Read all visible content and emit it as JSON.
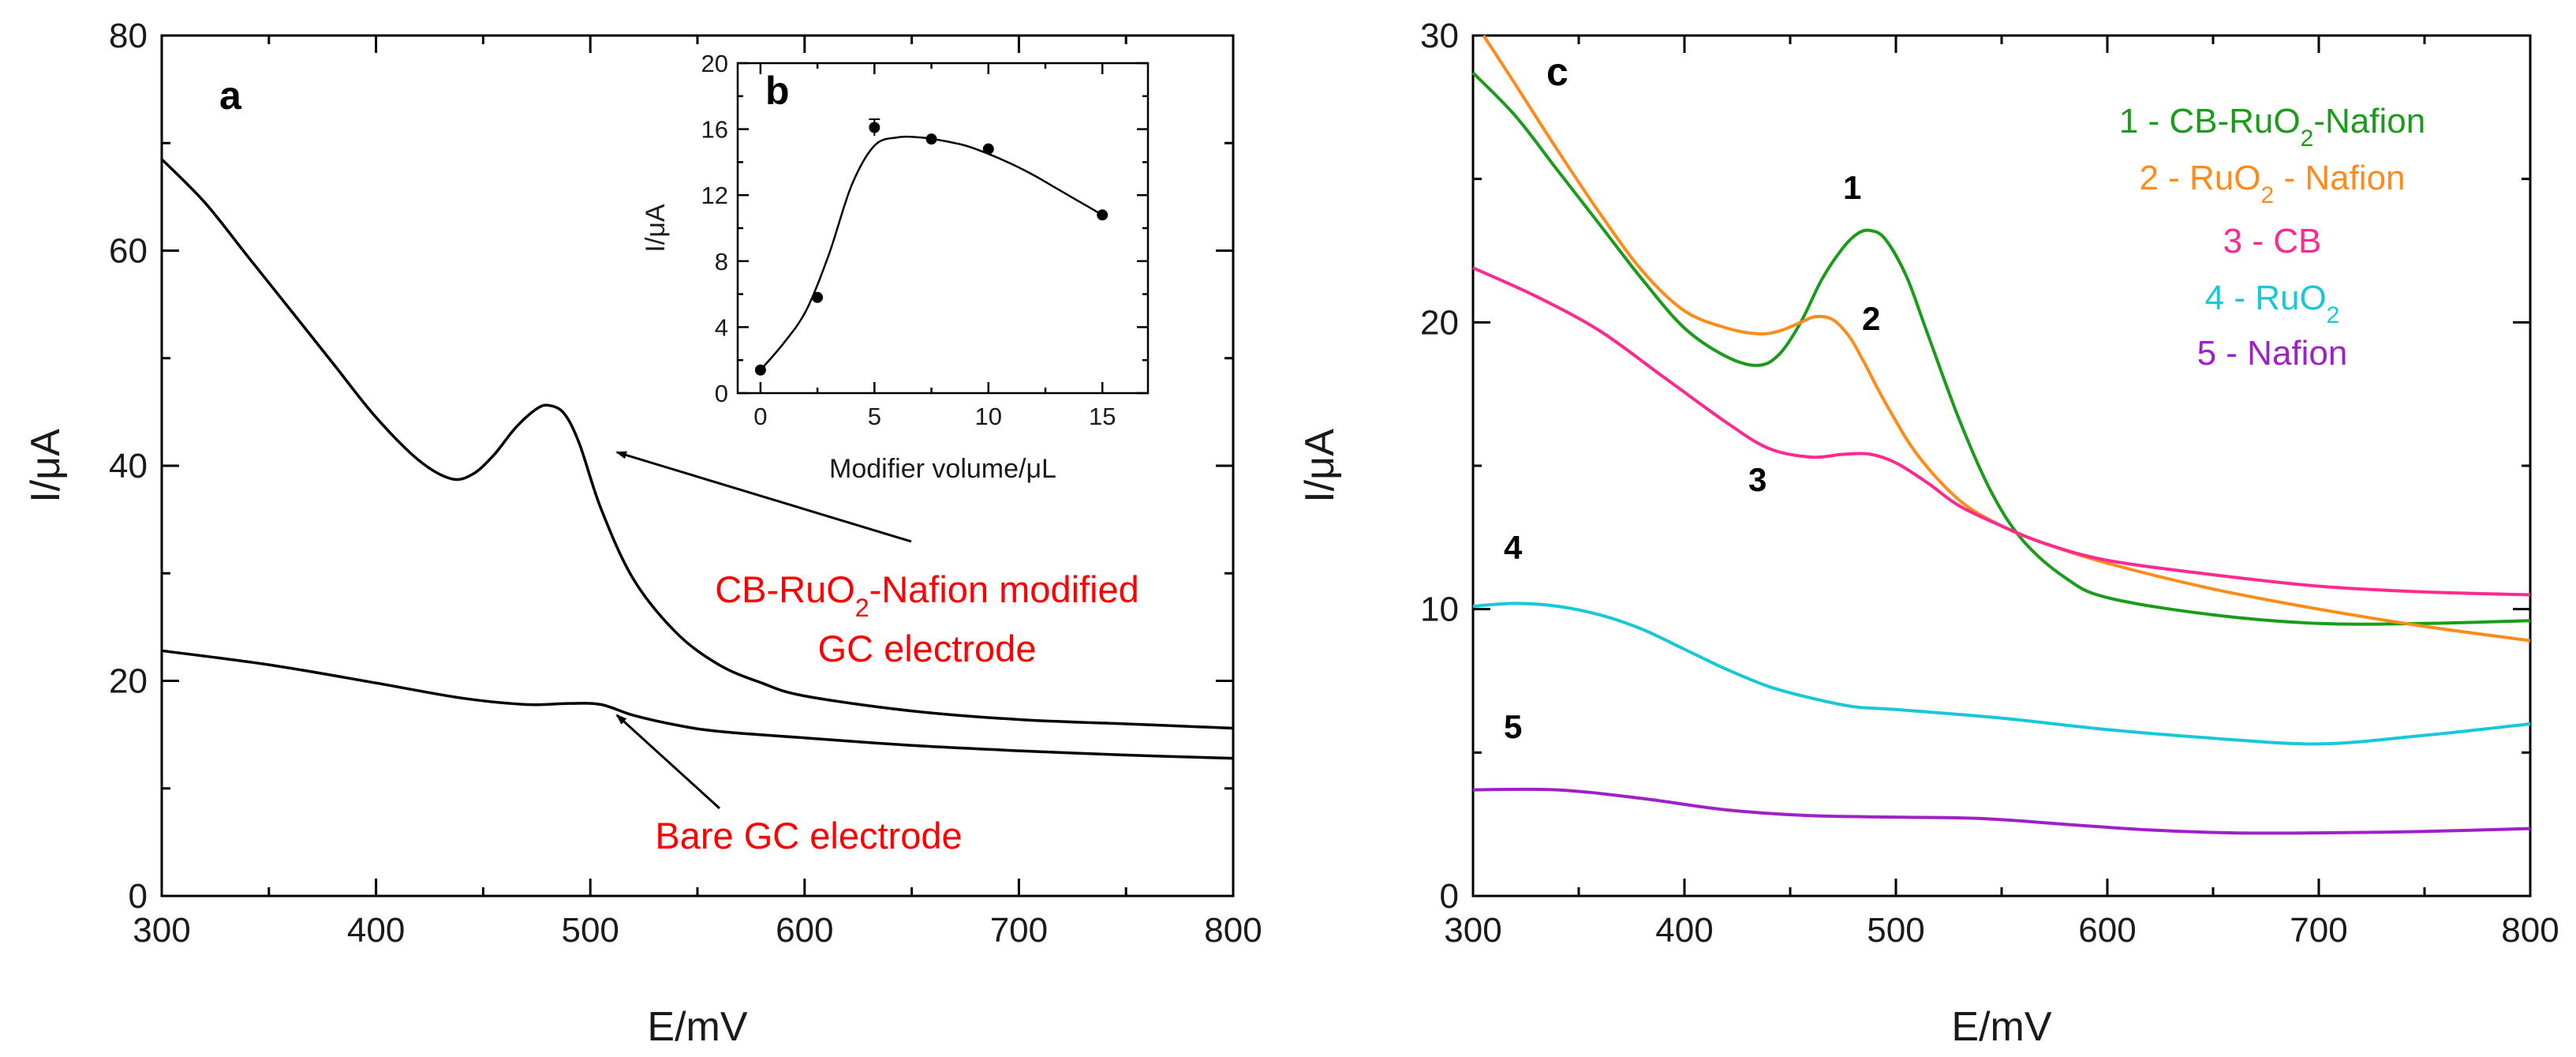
{
  "chart_data": [
    {
      "id": "a",
      "type": "line",
      "panel_label": "a",
      "xlabel": "E/mV",
      "ylabel": "I/μA",
      "xlim": [
        300,
        800
      ],
      "ylim": [
        0,
        80
      ],
      "xticks": [
        300,
        400,
        500,
        600,
        700,
        800
      ],
      "yticks": [
        0,
        20,
        40,
        60,
        80
      ],
      "grid": false,
      "series": [
        {
          "name": "CB-RuO2-Nafion modified GC electrode",
          "color": "#000000",
          "x": [
            300,
            320,
            340,
            360,
            380,
            400,
            420,
            435,
            445,
            455,
            465,
            475,
            481,
            488,
            495,
            505,
            520,
            540,
            560,
            580,
            600,
            650,
            700,
            750,
            800
          ],
          "y": [
            68.5,
            64.5,
            59.5,
            54.5,
            49.5,
            44.5,
            40.5,
            38.8,
            39.2,
            41.0,
            43.5,
            45.3,
            45.6,
            44.8,
            42.0,
            36.0,
            29.5,
            24.5,
            21.5,
            19.8,
            18.6,
            17.2,
            16.4,
            16.0,
            15.6
          ]
        },
        {
          "name": "Bare GC electrode",
          "color": "#000000",
          "x": [
            300,
            350,
            400,
            440,
            470,
            490,
            505,
            520,
            540,
            560,
            600,
            650,
            700,
            750,
            800
          ],
          "y": [
            22.8,
            21.5,
            19.8,
            18.4,
            17.8,
            17.9,
            17.8,
            16.8,
            15.9,
            15.3,
            14.7,
            14.0,
            13.5,
            13.1,
            12.8
          ]
        }
      ],
      "annotations": [
        {
          "text_parts": [
            {
              "t": "CB-RuO"
            },
            {
              "t": "2",
              "sub": true
            },
            {
              "t": "-Nafion modified"
            }
          ],
          "line2": "GC electrode",
          "color": "#ff0000"
        },
        {
          "text": "Bare GC electrode",
          "color": "#ff0000"
        }
      ]
    },
    {
      "id": "b",
      "type": "scatter",
      "panel_label": "b",
      "xlabel": "Modifier volume/μL",
      "ylabel": "I/μA",
      "xlim": [
        -1,
        17
      ],
      "ylim": [
        0,
        20
      ],
      "xticks": [
        0,
        5,
        10,
        15
      ],
      "yticks": [
        0,
        4,
        8,
        12,
        16,
        20
      ],
      "grid": false,
      "points": {
        "x": [
          0,
          2.5,
          5,
          7.5,
          10,
          15
        ],
        "y": [
          1.4,
          5.8,
          16.1,
          15.4,
          14.8,
          10.8
        ],
        "err": [
          0,
          0,
          0.5,
          0,
          0,
          0
        ]
      },
      "fit": {
        "x": [
          0,
          1,
          2,
          3,
          4,
          5,
          6,
          7,
          8,
          9,
          10,
          11,
          12,
          13,
          14,
          15
        ],
        "y": [
          1.4,
          3.0,
          5.0,
          8.4,
          12.6,
          15.0,
          15.5,
          15.5,
          15.3,
          15.0,
          14.5,
          13.9,
          13.2,
          12.4,
          11.6,
          10.8
        ]
      }
    },
    {
      "id": "c",
      "type": "line",
      "panel_label": "c",
      "xlabel": "E/mV",
      "ylabel": "I/μA",
      "xlim": [
        300,
        800
      ],
      "ylim": [
        0,
        30
      ],
      "xticks": [
        300,
        400,
        500,
        600,
        700,
        800
      ],
      "yticks": [
        0,
        10,
        20,
        30
      ],
      "grid": false,
      "legend_position": "top-right",
      "series": [
        {
          "id": "1",
          "label_parts": [
            {
              "t": "1 - CB-RuO"
            },
            {
              "t": "2",
              "sub": true
            },
            {
              "t": "-Nafion"
            }
          ],
          "color": "#1a9c1a",
          "x": [
            300,
            320,
            340,
            360,
            380,
            400,
            420,
            435,
            445,
            455,
            465,
            475,
            482,
            488,
            495,
            505,
            515,
            530,
            545,
            560,
            580,
            600,
            650,
            700,
            750,
            800
          ],
          "y": [
            28.7,
            27.2,
            25.3,
            23.4,
            21.5,
            19.8,
            18.8,
            18.5,
            18.9,
            20.0,
            21.5,
            22.6,
            23.1,
            23.2,
            22.9,
            21.6,
            19.6,
            16.6,
            14.1,
            12.4,
            11.1,
            10.4,
            9.8,
            9.5,
            9.5,
            9.6
          ]
        },
        {
          "id": "2",
          "label_parts": [
            {
              "t": "2 - RuO"
            },
            {
              "t": "2",
              "sub": true
            },
            {
              "t": " - Nafion"
            }
          ],
          "color": "#ff8c1a",
          "x": [
            305,
            320,
            340,
            360,
            380,
            400,
            420,
            435,
            445,
            455,
            462,
            470,
            478,
            485,
            495,
            510,
            530,
            550,
            570,
            600,
            650,
            700,
            750,
            800
          ],
          "y": [
            30.0,
            28.3,
            26.0,
            23.8,
            21.8,
            20.4,
            19.8,
            19.6,
            19.7,
            20.0,
            20.2,
            20.1,
            19.5,
            18.6,
            17.2,
            15.4,
            13.8,
            12.9,
            12.3,
            11.6,
            10.7,
            10.0,
            9.4,
            8.9
          ]
        },
        {
          "id": "3",
          "label_parts": [
            {
              "t": "3 - CB"
            }
          ],
          "color": "#ff2a8f",
          "x": [
            300,
            330,
            360,
            390,
            420,
            440,
            460,
            475,
            488,
            500,
            515,
            530,
            550,
            570,
            600,
            650,
            700,
            750,
            800
          ],
          "y": [
            21.9,
            20.9,
            19.7,
            18.1,
            16.5,
            15.6,
            15.3,
            15.4,
            15.4,
            15.1,
            14.4,
            13.6,
            12.9,
            12.3,
            11.7,
            11.2,
            10.8,
            10.6,
            10.5
          ]
        },
        {
          "id": "4",
          "label_parts": [
            {
              "t": "4 - RuO"
            },
            {
              "t": "2",
              "sub": true
            }
          ],
          "color": "#19c8d8",
          "x": [
            300,
            320,
            340,
            360,
            380,
            400,
            420,
            440,
            460,
            480,
            500,
            550,
            600,
            650,
            700,
            750,
            800
          ],
          "y": [
            10.1,
            10.2,
            10.1,
            9.8,
            9.3,
            8.6,
            7.9,
            7.3,
            6.9,
            6.6,
            6.5,
            6.2,
            5.8,
            5.5,
            5.3,
            5.6,
            6.0
          ]
        },
        {
          "id": "5",
          "label_parts": [
            {
              "t": "5 - Nafion"
            }
          ],
          "color": "#a020c8",
          "x": [
            300,
            340,
            380,
            420,
            460,
            500,
            540,
            580,
            620,
            660,
            700,
            750,
            800
          ],
          "y": [
            3.7,
            3.7,
            3.4,
            3.0,
            2.8,
            2.75,
            2.7,
            2.5,
            2.3,
            2.2,
            2.2,
            2.25,
            2.35
          ]
        }
      ],
      "curve_labels": [
        "1",
        "2",
        "3",
        "4",
        "5"
      ]
    }
  ]
}
